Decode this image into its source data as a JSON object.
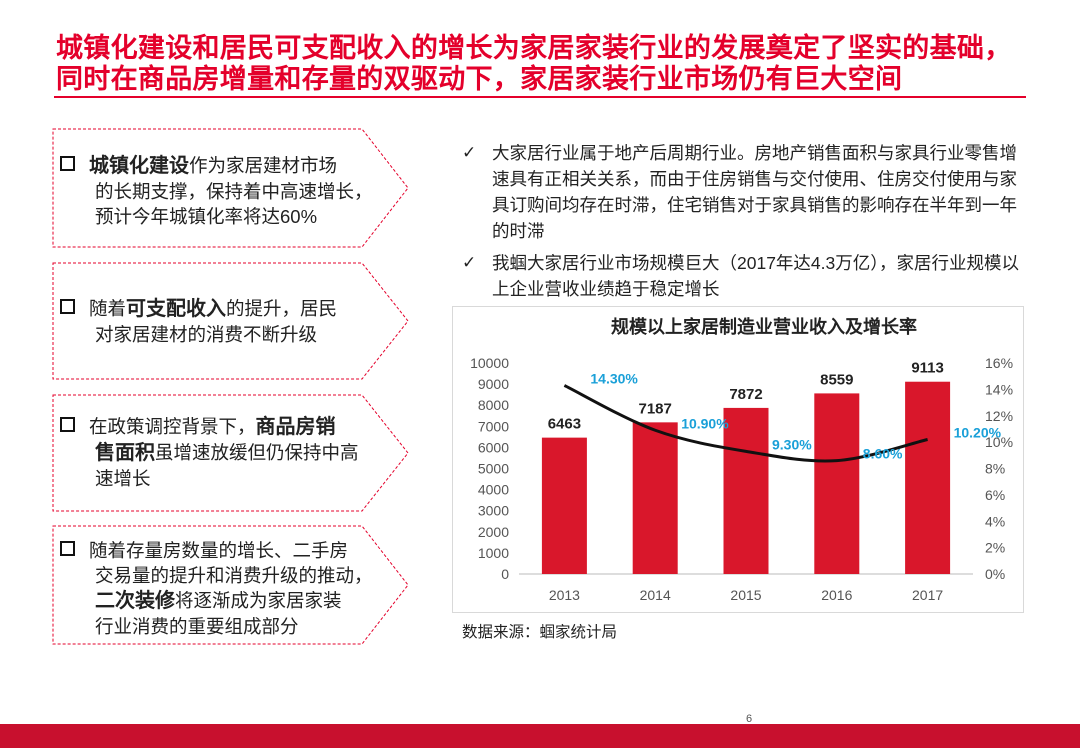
{
  "header": {
    "title_line1": "城镇化建设和居民可支配收入的增长为家居家装行业的发展奠定了坚实的基础，",
    "title_line2": "同时在商品房增量和存量的双驱动下，家居家装行业市场仍有巨大空间"
  },
  "cards": [
    {
      "bold": "城镇化建设",
      "rest1": "作为家居建材市场",
      "line2": "的长期支撑，保持着中高速增长，",
      "line3": "预计今年城镇化率将达60%"
    },
    {
      "pre": "随着",
      "bold": "可支配收入",
      "post": "的提升，居民",
      "line2": "对家居建材的消费不断升级"
    },
    {
      "pre": "在政策调控背景下，",
      "bold": "商品房销",
      "bold2": "售面积",
      "post": "虽增速放缓但仍保持中高",
      "line3": "速增长"
    },
    {
      "line1": "随着存量房数量的增长、二手房",
      "line2": "交易量的提升和消费升级的推动，",
      "bold": "二次装修",
      "post": "将逐渐成为家居家装",
      "line4": "行业消费的重要组成部分"
    }
  ],
  "bullets": [
    {
      "icon": "check-icon",
      "text": "大家居行业属于地产后周期行业。房地产销售面积与家具行业零售增速具有正相关关系，而由于住房销售与交付使用、住房交付使用与家具订购间均存在时滞，住宅销售对于家具销售的影响存在半年到一年的时滞"
    },
    {
      "icon": "check-icon",
      "text": "我蝈大家居行业市场规模巨大（2017年达4.3万亿），家居行业规模以上企业营收业绩趋于稳定增长"
    }
  ],
  "chart_data": {
    "type": "bar",
    "title": "规模以上家居制造业营业收入及增长率",
    "categories": [
      "2013",
      "2014",
      "2015",
      "2016",
      "2017"
    ],
    "series": [
      {
        "type": "bar",
        "values": [
          6463,
          7187,
          7872,
          8559,
          9113
        ],
        "labels": [
          "6463",
          "7187",
          "7872",
          "8559",
          "9113"
        ],
        "color": "#d9172b",
        "axis": "left"
      },
      {
        "type": "line",
        "values": [
          14.3,
          10.9,
          9.3,
          8.6,
          10.2
        ],
        "labels": [
          "14.30%",
          "10.90%",
          "9.30%",
          "8.60%",
          "10.20%"
        ],
        "color": "#111111",
        "label_color": "#1aa0d8",
        "axis": "right"
      }
    ],
    "ylim": [
      0,
      10000
    ],
    "yticks": [
      "0",
      "1000",
      "2000",
      "3000",
      "4000",
      "5000",
      "6000",
      "7000",
      "8000",
      "9000",
      "10000"
    ],
    "y2lim": [
      0,
      16
    ],
    "y2ticks": [
      "0%",
      "2%",
      "4%",
      "6%",
      "8%",
      "10%",
      "12%",
      "14%",
      "16%"
    ],
    "grid": false,
    "legend": "none"
  },
  "source": "数据来源：蝈家统计局",
  "footer": {
    "page": "6",
    "bar_color": "#c8102e"
  }
}
